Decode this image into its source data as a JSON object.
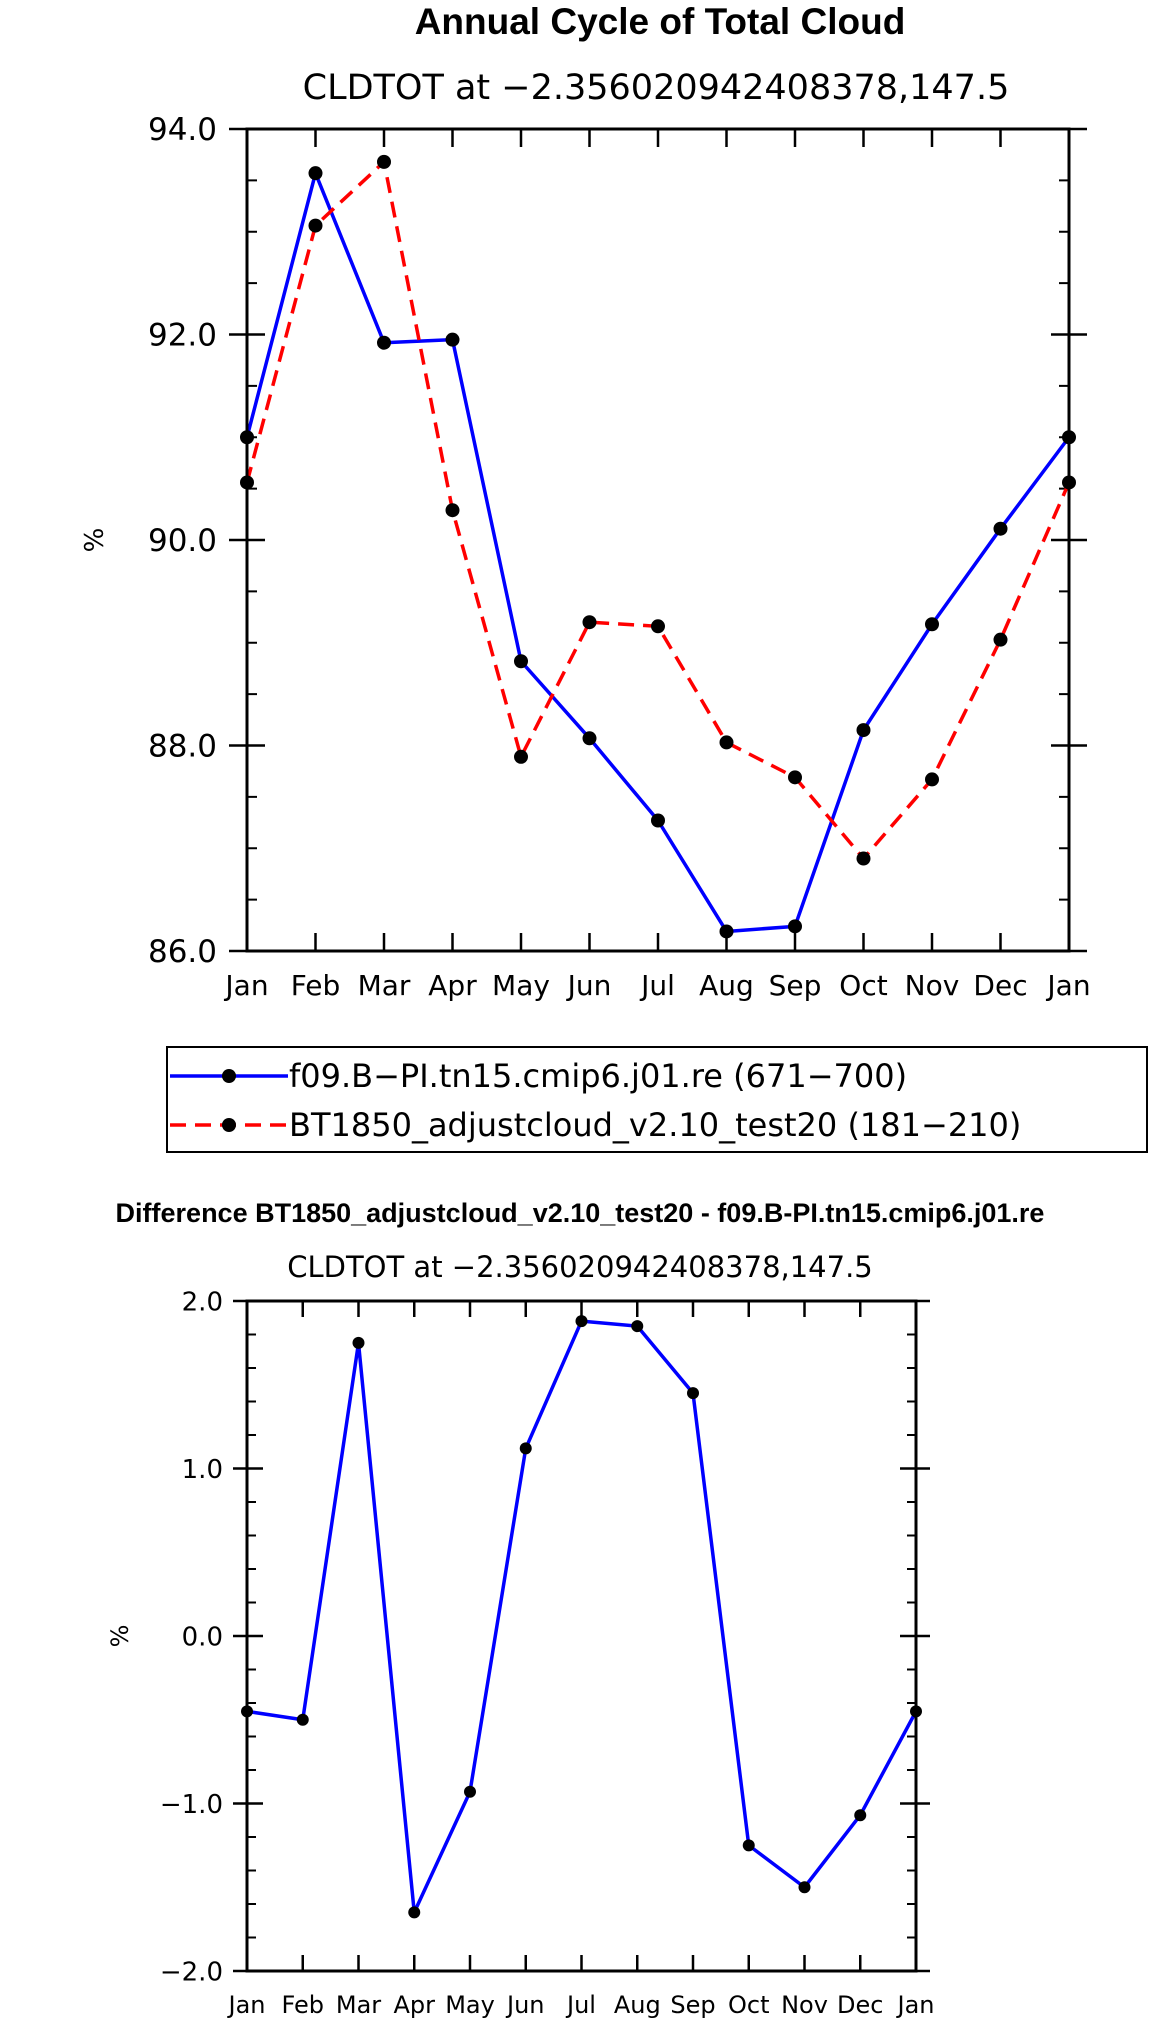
{
  "chart_data": [
    {
      "type": "line",
      "title": "Annual Cycle of Total Cloud",
      "subtitle": "CLDTOT at −2.356020942408378,147.5",
      "xlabel": "",
      "ylabel": "%",
      "categories": [
        "Jan",
        "Feb",
        "Mar",
        "Apr",
        "May",
        "Jun",
        "Jul",
        "Aug",
        "Sep",
        "Oct",
        "Nov",
        "Dec",
        "Jan"
      ],
      "ylim": [
        86.0,
        94.0
      ],
      "yticks": [
        86.0,
        88.0,
        90.0,
        92.0,
        94.0
      ],
      "ytick_labels": [
        "86.0",
        "88.0",
        "90.0",
        "92.0",
        "94.0"
      ],
      "series": [
        {
          "name": "f09.B−PI.tn15.cmip6.j01.re (671−700)",
          "color": "#0000ff",
          "dash": "solid",
          "values": [
            91.0,
            93.57,
            91.92,
            91.95,
            88.82,
            88.07,
            87.27,
            86.19,
            86.24,
            88.15,
            89.18,
            90.11,
            91.0
          ]
        },
        {
          "name": "BT1850_adjustcloud_v2.10_test20 (181−210)",
          "color": "#ff0000",
          "dash": "dashed",
          "values": [
            90.56,
            93.06,
            93.68,
            90.29,
            87.89,
            89.2,
            89.16,
            88.03,
            87.69,
            86.9,
            87.67,
            89.03,
            90.56
          ]
        }
      ]
    },
    {
      "type": "line",
      "title": "Difference BT1850_adjustcloud_v2.10_test20 - f09.B-PI.tn15.cmip6.j01.re",
      "subtitle": "CLDTOT at −2.356020942408378,147.5",
      "xlabel": "",
      "ylabel": "%",
      "categories": [
        "Jan",
        "Feb",
        "Mar",
        "Apr",
        "May",
        "Jun",
        "Jul",
        "Aug",
        "Sep",
        "Oct",
        "Nov",
        "Dec",
        "Jan"
      ],
      "ylim": [
        -2.0,
        2.0
      ],
      "yticks": [
        -2.0,
        -1.0,
        0.0,
        1.0,
        2.0
      ],
      "ytick_labels": [
        "−2.0",
        "−1.0",
        "0.0",
        "1.0",
        "2.0"
      ],
      "series": [
        {
          "name": "Difference",
          "color": "#0000ff",
          "dash": "solid",
          "values": [
            -0.45,
            -0.5,
            1.75,
            -1.65,
            -0.93,
            1.12,
            1.88,
            1.85,
            1.45,
            -1.25,
            -1.5,
            -1.07,
            -0.45
          ]
        }
      ]
    }
  ]
}
